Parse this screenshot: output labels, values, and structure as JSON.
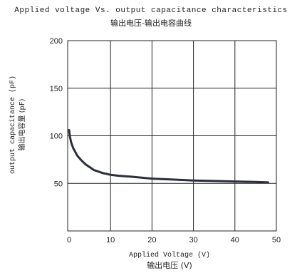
{
  "chart_data": {
    "type": "line",
    "title": "Applied voltage Vs. output capacitance characteristics",
    "subtitle": "输出电压-输出电容曲线",
    "xlabel": "Applied Voltage (V)",
    "xlabel_cn": "输出电压 (V)",
    "ylabel": "output capacitance (pF)",
    "ylabel_cn": "输出电容量 (pF)",
    "xlim": [
      0,
      50
    ],
    "ylim": [
      0,
      200
    ],
    "xticks": [
      0,
      10,
      20,
      30,
      40,
      50
    ],
    "yticks": [
      50,
      100,
      150,
      200
    ],
    "grid": true,
    "series": [
      {
        "x": [
          0,
          0.2,
          0.5,
          1,
          1.5,
          2,
          3,
          4,
          5,
          6,
          8,
          10,
          12,
          15,
          20,
          25,
          30,
          35,
          40,
          45,
          48
        ],
        "y": [
          106,
          99,
          93,
          87,
          83,
          79,
          74,
          70,
          67,
          64,
          61,
          59,
          58,
          57,
          55,
          54,
          53,
          52.5,
          52,
          51.5,
          51
        ]
      }
    ],
    "colors": {
      "line": "#2b2f3a",
      "grid": "#222222",
      "axis": "#222222"
    }
  }
}
